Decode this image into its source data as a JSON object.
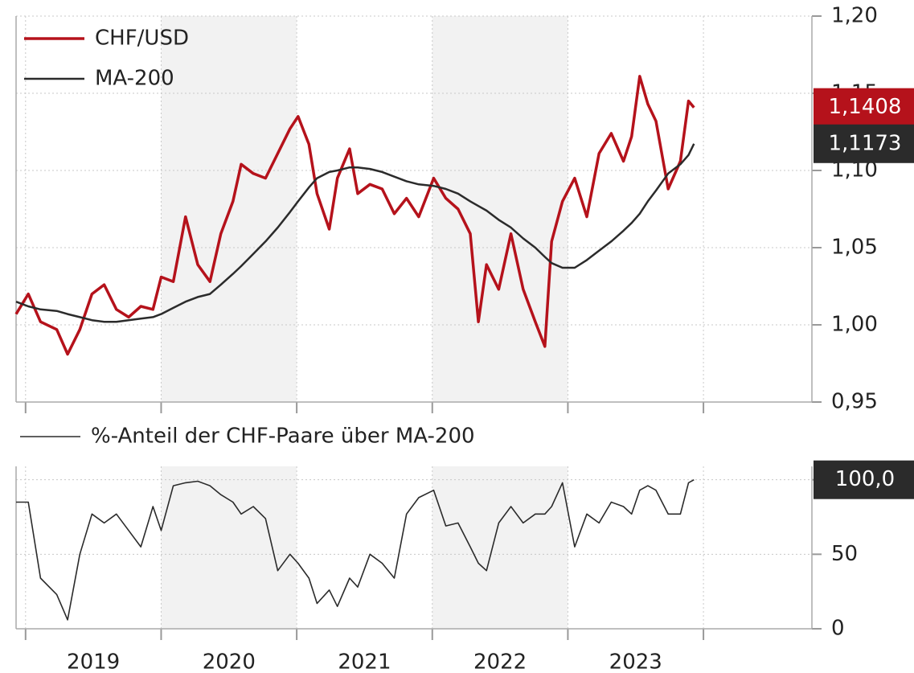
{
  "chart_data": [
    {
      "type": "line",
      "x": [
        2018.93,
        2019.02,
        2019.11,
        2019.23,
        2019.31,
        2019.4,
        2019.49,
        2019.58,
        2019.67,
        2019.76,
        2019.85,
        2019.94,
        2020.0,
        2020.09,
        2020.18,
        2020.27,
        2020.36,
        2020.44,
        2020.53,
        2020.59,
        2020.68,
        2020.77,
        2020.86,
        2020.95,
        2021.01,
        2021.09,
        2021.15,
        2021.24,
        2021.3,
        2021.39,
        2021.45,
        2021.54,
        2021.63,
        2021.72,
        2021.81,
        2021.9,
        2022.01,
        2022.1,
        2022.19,
        2022.28,
        2022.34,
        2022.4,
        2022.49,
        2022.58,
        2022.67,
        2022.76,
        2022.83,
        2022.88,
        2022.96,
        2023.05,
        2023.14,
        2023.23,
        2023.32,
        2023.41,
        2023.47,
        2023.53,
        2023.59,
        2023.65,
        2023.74,
        2023.83,
        2023.89,
        2023.93
      ],
      "series": [
        {
          "name": "CHF/USD",
          "color": "#b5121b",
          "end_label": "1,1408",
          "values": [
            1.007,
            1.02,
            1.002,
            0.997,
            0.981,
            0.997,
            1.02,
            1.026,
            1.01,
            1.005,
            1.012,
            1.01,
            1.031,
            1.028,
            1.07,
            1.039,
            1.028,
            1.059,
            1.08,
            1.104,
            1.098,
            1.095,
            1.111,
            1.127,
            1.135,
            1.117,
            1.085,
            1.062,
            1.095,
            1.114,
            1.085,
            1.091,
            1.088,
            1.072,
            1.082,
            1.07,
            1.095,
            1.082,
            1.075,
            1.059,
            1.002,
            1.039,
            1.023,
            1.059,
            1.023,
            1.002,
            0.986,
            1.054,
            1.08,
            1.095,
            1.07,
            1.111,
            1.124,
            1.106,
            1.122,
            1.161,
            1.143,
            1.132,
            1.088,
            1.106,
            1.145,
            1.1408
          ]
        },
        {
          "name": "MA-200",
          "color": "#2b2b2b",
          "end_label": "1,1173",
          "values": [
            1.015,
            1.012,
            1.01,
            1.009,
            1.007,
            1.005,
            1.003,
            1.002,
            1.002,
            1.003,
            1.004,
            1.005,
            1.007,
            1.011,
            1.015,
            1.018,
            1.02,
            1.026,
            1.033,
            1.038,
            1.046,
            1.054,
            1.063,
            1.073,
            1.08,
            1.089,
            1.095,
            1.099,
            1.1,
            1.102,
            1.102,
            1.101,
            1.099,
            1.096,
            1.093,
            1.091,
            1.09,
            1.088,
            1.085,
            1.08,
            1.077,
            1.074,
            1.068,
            1.063,
            1.056,
            1.05,
            1.044,
            1.04,
            1.037,
            1.037,
            1.042,
            1.048,
            1.054,
            1.061,
            1.066,
            1.072,
            1.08,
            1.087,
            1.098,
            1.104,
            1.11,
            1.1173
          ]
        }
      ],
      "xlim": [
        2018.93,
        2024.8
      ],
      "xgrid": [
        2019,
        2020,
        2021,
        2022,
        2023,
        2024
      ],
      "ylim": [
        0.95,
        1.2
      ],
      "yticks": [
        {
          "value": 0.95,
          "label": "0,95"
        },
        {
          "value": 1.0,
          "label": "1,00"
        },
        {
          "value": 1.05,
          "label": "1,05"
        },
        {
          "value": 1.1,
          "label": "1,10"
        },
        {
          "value": 1.15,
          "label": "1,15"
        },
        {
          "value": 1.2,
          "label": "1,20"
        }
      ],
      "grid": true,
      "legend": "upper left"
    },
    {
      "type": "line",
      "x": [
        2018.93,
        2019.02,
        2019.11,
        2019.23,
        2019.31,
        2019.4,
        2019.49,
        2019.58,
        2019.67,
        2019.76,
        2019.85,
        2019.94,
        2020.0,
        2020.09,
        2020.18,
        2020.27,
        2020.36,
        2020.44,
        2020.53,
        2020.59,
        2020.68,
        2020.77,
        2020.86,
        2020.95,
        2021.01,
        2021.09,
        2021.15,
        2021.24,
        2021.3,
        2021.39,
        2021.45,
        2021.54,
        2021.63,
        2021.72,
        2021.81,
        2021.9,
        2022.01,
        2022.1,
        2022.19,
        2022.28,
        2022.34,
        2022.4,
        2022.49,
        2022.58,
        2022.67,
        2022.76,
        2022.83,
        2022.88,
        2022.96,
        2023.05,
        2023.14,
        2023.23,
        2023.32,
        2023.41,
        2023.47,
        2023.53,
        2023.59,
        2023.65,
        2023.74,
        2023.83,
        2023.89,
        2023.93
      ],
      "series": [
        {
          "name": "%-Anteil der CHF-Paare über MA-200",
          "color": "#2b2b2b",
          "end_label": "100,0",
          "values": [
            85,
            85,
            34,
            23,
            6,
            50,
            77,
            71,
            77,
            66,
            55,
            82,
            66,
            96,
            98,
            99,
            96,
            90,
            85,
            77,
            82,
            74,
            39,
            50,
            44,
            34,
            17,
            26,
            15,
            34,
            28,
            50,
            44,
            34,
            77,
            88,
            93,
            69,
            71,
            55,
            44,
            39,
            71,
            82,
            71,
            77,
            77,
            82,
            98,
            55,
            77,
            71,
            85,
            82,
            77,
            93,
            96,
            93,
            77,
            77,
            98,
            100
          ]
        }
      ],
      "xlim": [
        2018.93,
        2024.8
      ],
      "xgrid": [
        2019,
        2020,
        2021,
        2022,
        2023,
        2024
      ],
      "xticks": [
        {
          "value": 2019.5,
          "label": "2019"
        },
        {
          "value": 2020.5,
          "label": "2020"
        },
        {
          "value": 2021.5,
          "label": "2021"
        },
        {
          "value": 2022.5,
          "label": "2022"
        },
        {
          "value": 2023.5,
          "label": "2023"
        }
      ],
      "ylim": [
        0,
        109
      ],
      "yticks": [
        0,
        50,
        100
      ],
      "grid": true,
      "legend": "upper left"
    }
  ]
}
